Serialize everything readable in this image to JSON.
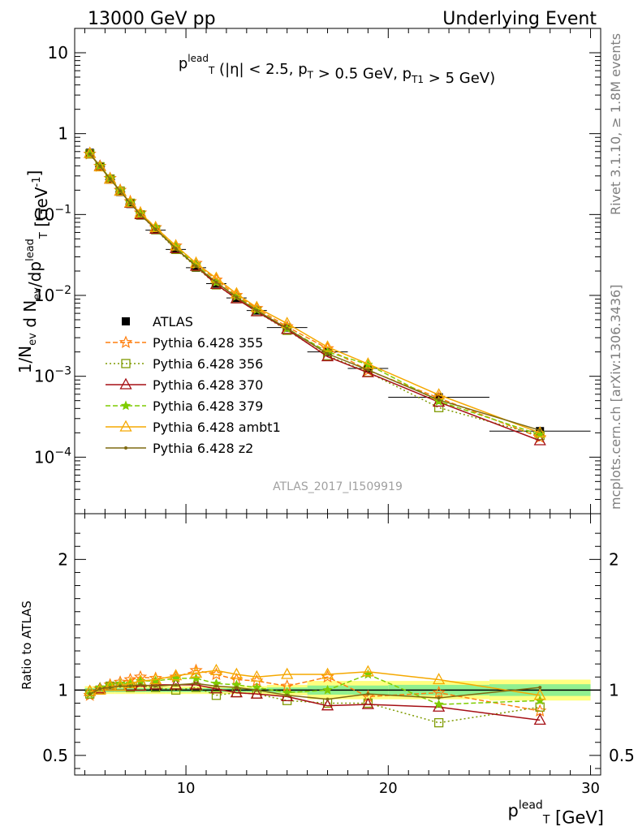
{
  "header": {
    "left": "13000 GeV pp",
    "right": "Underlying Event",
    "side_top": "Rivet 3.1.10, ≥ 1.8M events",
    "side_bottom": "mcplots.cern.ch [arXiv:1306.3436]",
    "analysis_id": "ATLAS_2017_I1509919"
  },
  "chart_data": [
    {
      "type": "line",
      "panel": "main",
      "title": "p_T^lead (|η| < 2.5, p_T > 0.5 GeV, p_T1 > 5 GeV)",
      "ylabel": "1/N_ev d N_ev/dp_T^lead [GeV^-1]",
      "xlim": [
        4.5,
        30.5
      ],
      "ylim": [
        2e-05,
        20
      ],
      "yscale": "log",
      "legend": "center-left",
      "x": [
        5.25,
        5.75,
        6.25,
        6.75,
        7.25,
        7.75,
        8.5,
        9.5,
        10.5,
        11.5,
        12.5,
        13.5,
        15,
        17,
        19,
        22.5,
        27.5
      ],
      "xerr": [
        0.25,
        0.25,
        0.25,
        0.25,
        0.25,
        0.25,
        0.5,
        0.5,
        0.5,
        0.5,
        0.5,
        0.5,
        1,
        1,
        1,
        2.5,
        2.5
      ],
      "series": [
        {
          "name": "ATLAS",
          "color": "#000000",
          "marker": "square",
          "values": [
            0.58,
            0.39,
            0.27,
            0.19,
            0.135,
            0.097,
            0.064,
            0.037,
            0.022,
            0.014,
            0.0093,
            0.0065,
            0.004,
            0.002,
            0.00125,
            0.00055,
            0.00021
          ]
        },
        {
          "name": "Pythia 6.428 355",
          "color": "#ff7f0e",
          "marker": "star",
          "dash": "6,3",
          "values": [
            0.56,
            0.395,
            0.28,
            0.2,
            0.145,
            0.105,
            0.069,
            0.041,
            0.025,
            0.0155,
            0.01,
            0.0069,
            0.0041,
            0.0022,
            0.00118,
            0.00054,
            0.000175
          ]
        },
        {
          "name": "Pythia 6.428 356",
          "color": "#7f9a00",
          "marker": "square-open",
          "dash": "2,3",
          "values": [
            0.56,
            0.39,
            0.275,
            0.195,
            0.138,
            0.099,
            0.065,
            0.037,
            0.0225,
            0.0135,
            0.0091,
            0.0063,
            0.0037,
            0.0018,
            0.00112,
            0.00041,
            0.000185
          ]
        },
        {
          "name": "Pythia 6.428 370",
          "color": "#a50f15",
          "marker": "triangle-open",
          "dash": "",
          "values": [
            0.57,
            0.395,
            0.275,
            0.195,
            0.138,
            0.1,
            0.066,
            0.038,
            0.023,
            0.0137,
            0.0091,
            0.0063,
            0.0038,
            0.00175,
            0.00111,
            0.00048,
            0.00016
          ]
        },
        {
          "name": "Pythia 6.428 379",
          "color": "#7fcc00",
          "marker": "star-small",
          "dash": "6,3",
          "values": [
            0.56,
            0.4,
            0.28,
            0.198,
            0.14,
            0.102,
            0.068,
            0.04,
            0.024,
            0.0145,
            0.0097,
            0.0066,
            0.0039,
            0.002,
            0.0014,
            0.00049,
            0.00019
          ]
        },
        {
          "name": "Pythia 6.428 ambt1",
          "color": "#f5a800",
          "marker": "triangle-open",
          "dash": "",
          "values": [
            0.57,
            0.39,
            0.275,
            0.195,
            0.14,
            0.104,
            0.069,
            0.041,
            0.025,
            0.0163,
            0.0105,
            0.0071,
            0.0045,
            0.0023,
            0.00142,
            0.00059,
            0.0002
          ]
        },
        {
          "name": "Pythia 6.428 z2",
          "color": "#7f6a10",
          "marker": "dot",
          "dash": "",
          "values": [
            0.56,
            0.395,
            0.275,
            0.195,
            0.138,
            0.1,
            0.066,
            0.038,
            0.023,
            0.0145,
            0.0095,
            0.0065,
            0.0039,
            0.0019,
            0.0012,
            0.00051,
            0.000215
          ]
        }
      ]
    },
    {
      "type": "line",
      "panel": "ratio",
      "xlabel": "p_T^lead [GeV]",
      "ylabel": "Ratio to ATLAS",
      "xlim": [
        4.5,
        30.5
      ],
      "ylim": [
        0.35,
        2.35
      ],
      "yscale": "linear",
      "x_ticks": [
        10,
        20,
        30
      ],
      "y_ticks": [
        0.5,
        1,
        2
      ],
      "band_yellow": [
        0.03,
        0.03,
        0.03,
        0.03,
        0.03,
        0.03,
        0.03,
        0.03,
        0.03,
        0.03,
        0.03,
        0.03,
        0.04,
        0.07,
        0.07,
        0.07,
        0.08
      ],
      "band_green": [
        0.015,
        0.015,
        0.015,
        0.015,
        0.015,
        0.015,
        0.015,
        0.015,
        0.015,
        0.015,
        0.015,
        0.015,
        0.02,
        0.035,
        0.035,
        0.04,
        0.045
      ],
      "series": [
        {
          "name": "Pythia 6.428 355",
          "values": [
            0.96,
            1.01,
            1.04,
            1.06,
            1.08,
            1.1,
            1.09,
            1.1,
            1.15,
            1.12,
            1.08,
            1.07,
            1.03,
            1.1,
            0.95,
            0.98,
            0.84
          ]
        },
        {
          "name": "Pythia 6.428 356",
          "values": [
            0.97,
            1.0,
            1.03,
            1.03,
            1.02,
            1.03,
            1.02,
            1.0,
            1.02,
            0.96,
            0.98,
            0.97,
            0.92,
            0.9,
            0.9,
            0.75,
            0.87
          ]
        },
        {
          "name": "Pythia 6.428 370",
          "values": [
            0.99,
            1.01,
            1.03,
            1.03,
            1.03,
            1.03,
            1.04,
            1.04,
            1.04,
            1.01,
            0.98,
            0.97,
            0.95,
            0.88,
            0.89,
            0.87,
            0.77
          ]
        },
        {
          "name": "Pythia 6.428 379",
          "values": [
            0.97,
            1.02,
            1.04,
            1.05,
            1.05,
            1.07,
            1.07,
            1.09,
            1.09,
            1.05,
            1.04,
            1.02,
            0.98,
            1.0,
            1.12,
            0.89,
            0.92
          ]
        },
        {
          "name": "Pythia 6.428 ambt1",
          "values": [
            0.99,
            1.0,
            1.03,
            1.03,
            1.05,
            1.07,
            1.08,
            1.11,
            1.13,
            1.15,
            1.12,
            1.1,
            1.12,
            1.12,
            1.14,
            1.08,
            0.96
          ]
        },
        {
          "name": "Pythia 6.428 z2",
          "values": [
            0.97,
            1.01,
            1.02,
            1.03,
            1.03,
            1.04,
            1.03,
            1.04,
            1.05,
            1.03,
            1.02,
            1.0,
            0.96,
            0.93,
            0.97,
            0.94,
            1.02
          ]
        }
      ]
    }
  ]
}
